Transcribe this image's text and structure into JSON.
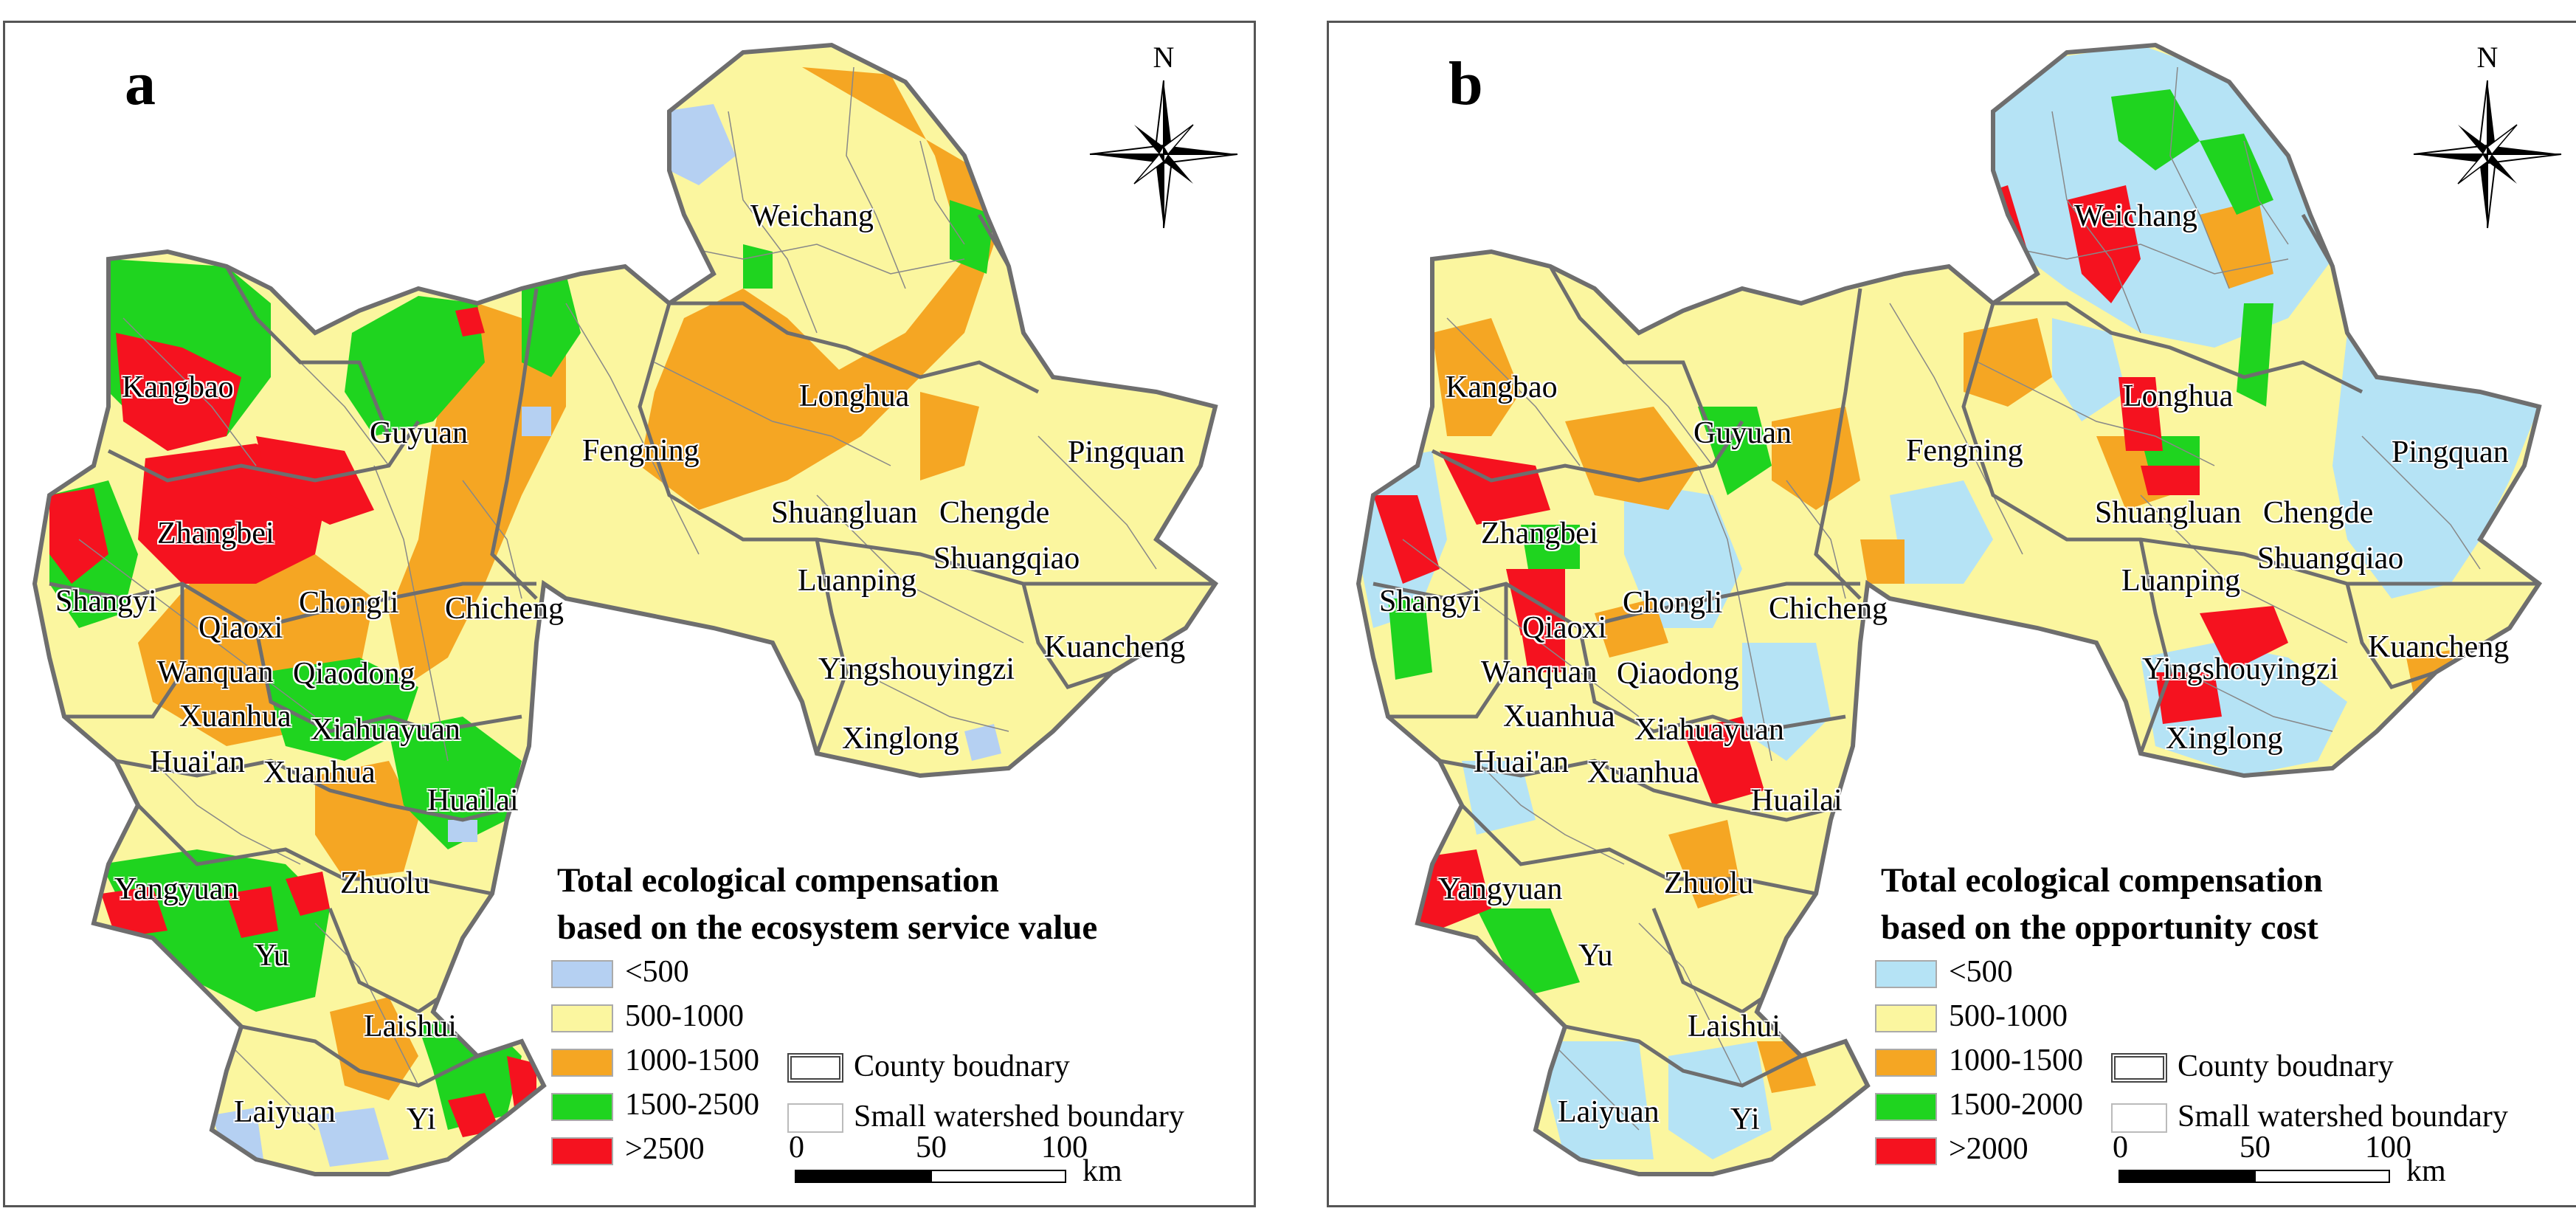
{
  "colors": {
    "lt500_a": "#b5d0f2",
    "lt500_b": "#b5e3f5",
    "c500_1000": "#fbf69f",
    "c1000_1500": "#f5a623",
    "c1500_2500": "#1fd41f",
    "gt2500": "#f5121f",
    "boundary": "#6e6e6e"
  },
  "compass_label": "N",
  "panels": [
    {
      "id": "a",
      "letter": "a",
      "legend": {
        "title_line1": "Total ecological compensation",
        "title_line2": "based on the ecosystem service value",
        "items": [
          {
            "label": "<500",
            "color": "#b5d0f2"
          },
          {
            "label": "500-1000",
            "color": "#fbf69f"
          },
          {
            "label": "1000-1500",
            "color": "#f5a623"
          },
          {
            "label": "1500-2500",
            "color": "#1fd41f"
          },
          {
            "label": ">2500",
            "color": "#f5121f"
          }
        ]
      }
    },
    {
      "id": "b",
      "letter": "b",
      "legend": {
        "title_line1": "Total ecological compensation",
        "title_line2": "based on the opportunity cost",
        "items": [
          {
            "label": "<500",
            "color": "#b5e3f5"
          },
          {
            "label": "500-1000",
            "color": "#fbf69f"
          },
          {
            "label": "1000-1500",
            "color": "#f5a623"
          },
          {
            "label": "1500-2000",
            "color": "#1fd41f"
          },
          {
            "label": ">2000",
            "color": "#f5121f"
          }
        ]
      }
    }
  ],
  "boundaries": {
    "county": "County boudnary",
    "watershed": "Small watershed boundary"
  },
  "scale": {
    "ticks": [
      "0",
      "50",
      "100"
    ],
    "unit": "km"
  },
  "counties": {
    "weichang": "Weichang",
    "kangbao": "Kangbao",
    "guyuan": "Guyuan",
    "longhua": "Longhua",
    "fengning": "Fengning",
    "pingquan": "Pingquan",
    "zhangbei": "Zhangbei",
    "shuangluan": "Shuangluan",
    "chengde": "Chengde",
    "shuangqiao": "Shuangqiao",
    "shangyi": "Shangyi",
    "chongli": "Chongli",
    "luanping": "Luanping",
    "qiaoxi": "Qiaoxi",
    "chicheng": "Chicheng",
    "kuancheng": "Kuancheng",
    "wanquan": "Wanquan",
    "qiaodong": "Qiaodong",
    "yingshouyingzi": "Yingshouyingzi",
    "xuanhua": "Xuanhua",
    "xiahuayuan": "Xiahuayuan",
    "xinglong": "Xinglong",
    "huaian": "Huai'an",
    "huailai": "Huailai",
    "yangyuan": "Yangyuan",
    "zhuolu": "Zhuolu",
    "yu": "Yu",
    "laishui": "Laishui",
    "laiyuan": "Laiyuan",
    "yi": "Yi"
  }
}
